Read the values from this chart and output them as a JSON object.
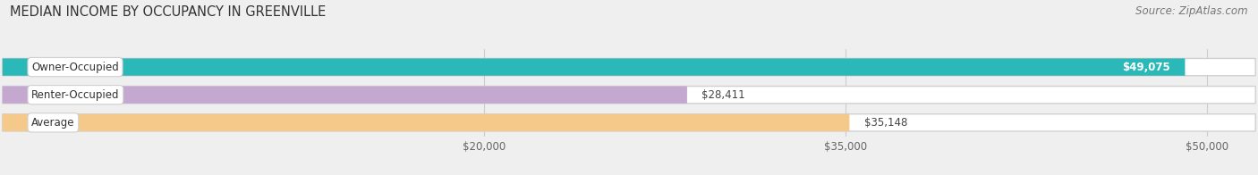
{
  "title": "MEDIAN INCOME BY OCCUPANCY IN GREENVILLE",
  "source": "Source: ZipAtlas.com",
  "categories": [
    "Owner-Occupied",
    "Renter-Occupied",
    "Average"
  ],
  "values": [
    49075,
    28411,
    35148
  ],
  "bar_colors": [
    "#2ab8b8",
    "#c4a8d0",
    "#f5c98a"
  ],
  "value_labels": [
    "$49,075",
    "$28,411",
    "$35,148"
  ],
  "value_label_inside": [
    true,
    false,
    false
  ],
  "x_ticks": [
    20000,
    35000,
    50000
  ],
  "x_tick_labels": [
    "$20,000",
    "$35,000",
    "$50,000"
  ],
  "xmin": 0,
  "xmax": 52000,
  "background_color": "#efefef",
  "bar_bg_color": "#ffffff",
  "bar_border_color": "#d0d0d0",
  "title_fontsize": 10.5,
  "source_fontsize": 8.5,
  "label_fontsize": 8.5,
  "value_fontsize": 8.5,
  "tick_fontsize": 8.5
}
